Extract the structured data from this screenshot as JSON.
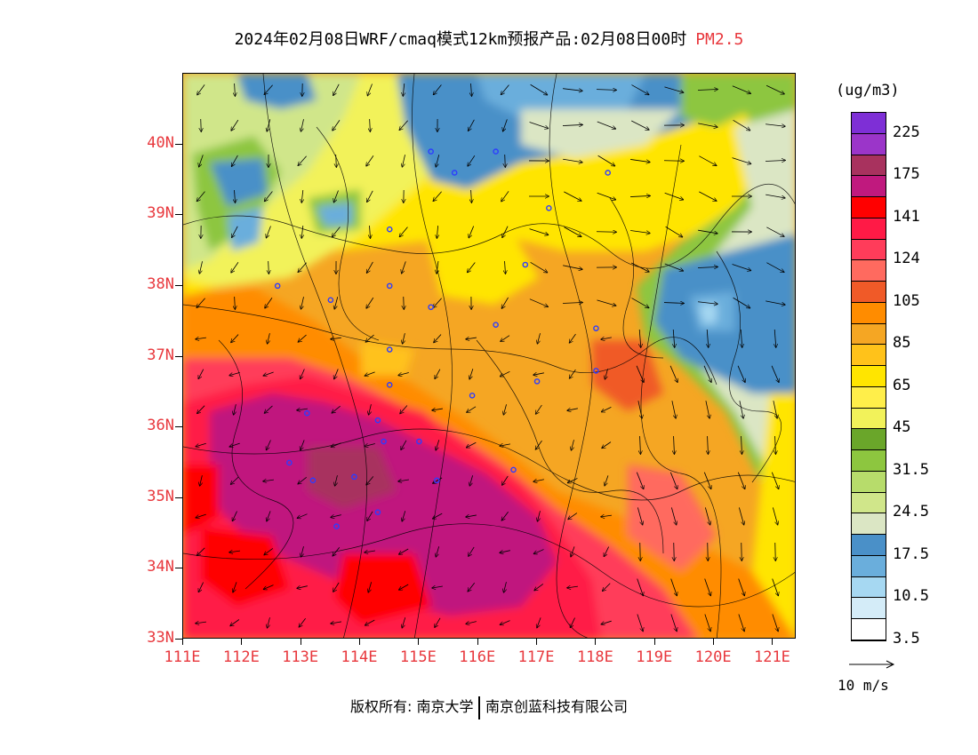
{
  "title": {
    "main": "2024年02月08日WRF/cmaq模式12km预报产品:02月08日00时",
    "variable": "PM2.5"
  },
  "legend": {
    "unit": "(ug/m3)",
    "labels": [
      "225",
      "175",
      "141",
      "124",
      "105",
      "85",
      "65",
      "45",
      "31.5",
      "24.5",
      "17.5",
      "10.5",
      "3.5"
    ],
    "colors": [
      "#7e2fd6",
      "#9b35c9",
      "#a8325e",
      "#c0197e",
      "#ff0000",
      "#ff1a46",
      "#ff3c5a",
      "#ff6a5f",
      "#f05a28",
      "#ff8c00",
      "#f5a623",
      "#ffc21a",
      "#ffe500",
      "#ffee4a",
      "#f2f25a",
      "#6aa62a",
      "#8dc63f",
      "#b7dc6b",
      "#d0e68a",
      "#dbe6c4",
      "#4a90c8",
      "#6aaedc",
      "#a6d8f2",
      "#d4ecf8",
      "#ffffff"
    ]
  },
  "wind_reference": {
    "label": "10 m/s"
  },
  "map": {
    "y_labels": [
      "40N",
      "39N",
      "38N",
      "37N",
      "36N",
      "35N",
      "34N",
      "33N"
    ],
    "x_labels": [
      "111E",
      "112E",
      "113E",
      "114E",
      "115E",
      "116E",
      "117E",
      "118E",
      "119E",
      "120E",
      "121E"
    ],
    "lat_range": [
      33,
      41
    ],
    "lon_range": [
      111,
      121.4
    ],
    "city_markers": [
      [
        115.2,
        39.9
      ],
      [
        115.6,
        39.6
      ],
      [
        116.3,
        39.9
      ],
      [
        117.2,
        39.1
      ],
      [
        118.2,
        39.6
      ],
      [
        114.5,
        38.8
      ],
      [
        112.6,
        38.0
      ],
      [
        113.5,
        37.8
      ],
      [
        114.5,
        38.0
      ],
      [
        115.2,
        37.7
      ],
      [
        116.3,
        37.45
      ],
      [
        116.8,
        38.3
      ],
      [
        118.0,
        37.4
      ],
      [
        114.5,
        37.1
      ],
      [
        114.5,
        36.6
      ],
      [
        115.9,
        36.45
      ],
      [
        117.0,
        36.65
      ],
      [
        118.0,
        36.8
      ],
      [
        113.1,
        36.2
      ],
      [
        114.3,
        36.1
      ],
      [
        114.4,
        35.8
      ],
      [
        115.0,
        35.8
      ],
      [
        112.8,
        35.5
      ],
      [
        113.2,
        35.25
      ],
      [
        113.9,
        35.3
      ],
      [
        115.3,
        35.25
      ],
      [
        116.6,
        35.4
      ],
      [
        114.3,
        34.8
      ],
      [
        113.6,
        34.6
      ]
    ]
  },
  "footer": {
    "left": "版权所有: 南京大学",
    "right": "南京创蓝科技有限公司"
  }
}
